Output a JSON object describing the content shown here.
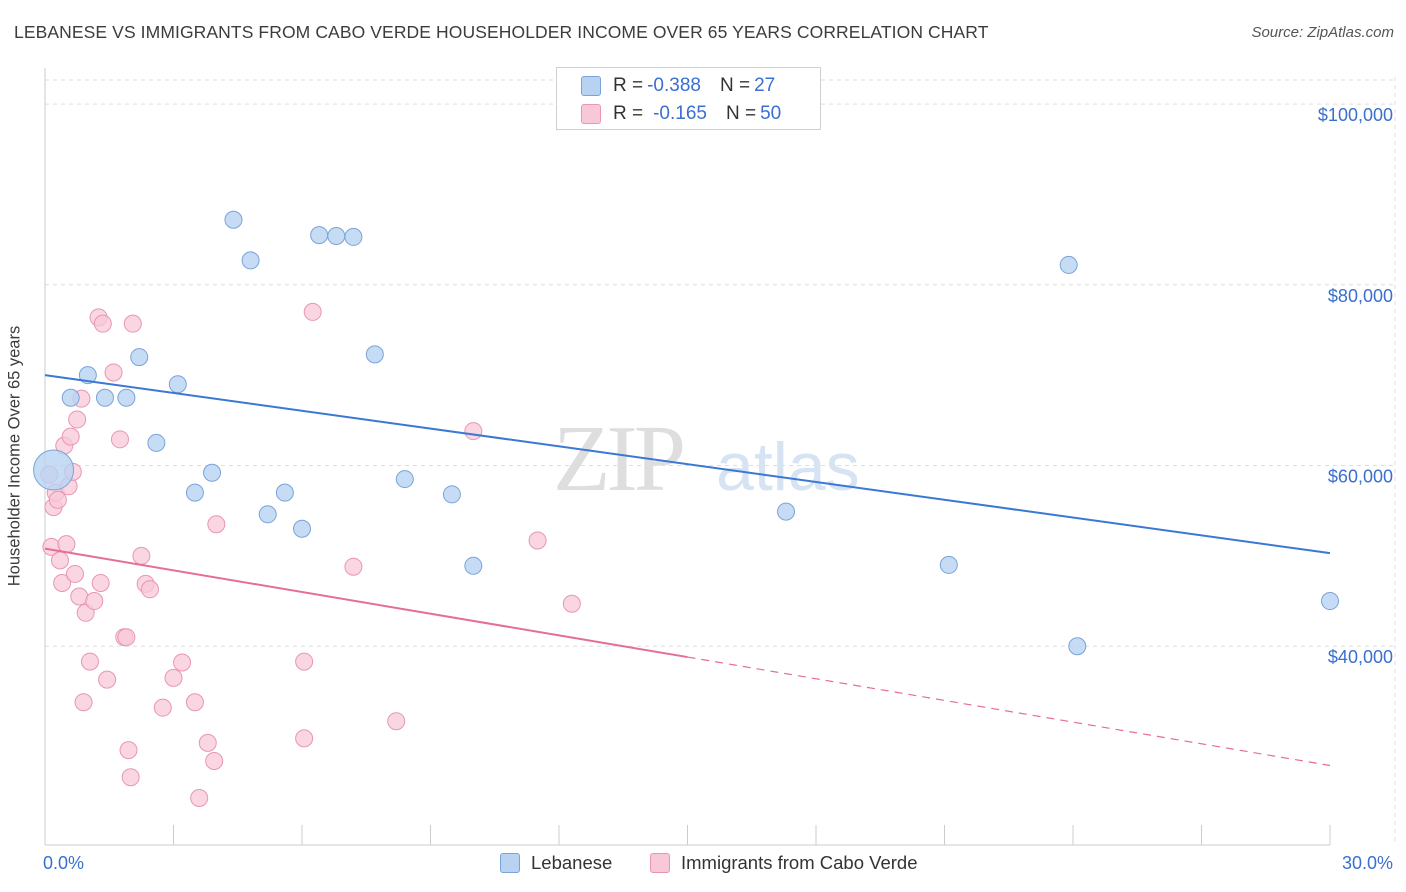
{
  "title": "LEBANESE VS IMMIGRANTS FROM CABO VERDE HOUSEHOLDER INCOME OVER 65 YEARS CORRELATION CHART",
  "source": "Source: ZipAtlas.com",
  "watermark": {
    "zip": "ZIP",
    "atlas": "atlas"
  },
  "legend": {
    "rows": [
      {
        "r_label": "R = ",
        "r_value": "-0.388",
        "n_label": "N = ",
        "n_value": "27"
      },
      {
        "r_label": "R = ",
        "r_value": "-0.165",
        "n_label": "N = ",
        "n_value": "50"
      }
    ]
  },
  "colors": {
    "blue_fill": "#b8d3f2",
    "blue_stroke": "#7aa3d8",
    "blue_line": "#3a78d4",
    "pink_fill": "#f8c8d8",
    "pink_stroke": "#e896b2",
    "pink_line": "#e56e96",
    "axis_label": "#3a6fd0",
    "grid": "#dddddd"
  },
  "chart_data": {
    "type": "scatter",
    "title": "LEBANESE VS IMMIGRANTS FROM CABO VERDE HOUSEHOLDER INCOME OVER 65 YEARS CORRELATION CHART",
    "xlabel": "",
    "ylabel": "Householder Income Over 65 years",
    "xlim": [
      0,
      30
    ],
    "ylim": [
      18000,
      103000
    ],
    "x_tick_labels": [
      "0.0%",
      "30.0%"
    ],
    "y_ticks": [
      40000,
      60000,
      80000,
      100000
    ],
    "y_tick_labels": [
      "$40,000",
      "$60,000",
      "$80,000",
      "$100,000"
    ],
    "grid": true,
    "legend_position": "bottom",
    "series": [
      {
        "name": "Lebanese",
        "color": "#7aa3d8",
        "points": [
          [
            0.2,
            59500
          ],
          [
            0.6,
            67500
          ],
          [
            1.0,
            70000
          ],
          [
            1.4,
            67500
          ],
          [
            1.9,
            67500
          ],
          [
            2.2,
            72000
          ],
          [
            2.6,
            62500
          ],
          [
            3.1,
            69000
          ],
          [
            3.5,
            57000
          ],
          [
            3.9,
            59200
          ],
          [
            4.4,
            87200
          ],
          [
            4.8,
            82700
          ],
          [
            5.2,
            54600
          ],
          [
            5.6,
            57000
          ],
          [
            6.0,
            53000
          ],
          [
            6.4,
            85500
          ],
          [
            6.8,
            85400
          ],
          [
            7.2,
            85300
          ],
          [
            7.7,
            72300
          ],
          [
            8.4,
            58500
          ],
          [
            9.5,
            56800
          ],
          [
            10.0,
            48900
          ],
          [
            17.3,
            54900
          ],
          [
            21.1,
            49000
          ],
          [
            23.9,
            82200
          ],
          [
            24.1,
            40000
          ],
          [
            30.0,
            45000
          ]
        ],
        "trend": {
          "x": [
            0,
            30
          ],
          "y": [
            70000,
            50300
          ]
        }
      },
      {
        "name": "Immigrants from Cabo Verde",
        "color": "#e896b2",
        "points": [
          [
            0.1,
            59000
          ],
          [
            0.15,
            51000
          ],
          [
            0.2,
            55400
          ],
          [
            0.25,
            57000
          ],
          [
            0.3,
            56200
          ],
          [
            0.35,
            49500
          ],
          [
            0.4,
            47000
          ],
          [
            0.45,
            62200
          ],
          [
            0.5,
            51300
          ],
          [
            0.55,
            57700
          ],
          [
            0.6,
            63200
          ],
          [
            0.65,
            59300
          ],
          [
            0.7,
            48000
          ],
          [
            0.75,
            65100
          ],
          [
            0.8,
            45500
          ],
          [
            0.85,
            67400
          ],
          [
            0.9,
            33800
          ],
          [
            0.95,
            43700
          ],
          [
            1.05,
            38300
          ],
          [
            1.15,
            45000
          ],
          [
            1.25,
            76400
          ],
          [
            1.3,
            47000
          ],
          [
            1.35,
            75700
          ],
          [
            1.45,
            36300
          ],
          [
            1.6,
            70300
          ],
          [
            1.75,
            62900
          ],
          [
            1.85,
            41000
          ],
          [
            1.95,
            28500
          ],
          [
            2.0,
            25500
          ],
          [
            2.05,
            75700
          ],
          [
            2.25,
            50000
          ],
          [
            2.35,
            46900
          ],
          [
            2.45,
            46300
          ],
          [
            2.75,
            33200
          ],
          [
            3.0,
            36500
          ],
          [
            3.2,
            38200
          ],
          [
            3.5,
            33800
          ],
          [
            3.6,
            23200
          ],
          [
            3.8,
            29300
          ],
          [
            3.95,
            27300
          ],
          [
            4.0,
            53500
          ],
          [
            6.05,
            38300
          ],
          [
            6.05,
            29800
          ],
          [
            6.25,
            77000
          ],
          [
            7.2,
            48800
          ],
          [
            8.2,
            31700
          ],
          [
            10.0,
            63800
          ],
          [
            11.5,
            51700
          ],
          [
            12.3,
            44700
          ],
          [
            1.9,
            41000
          ]
        ],
        "trend": {
          "x": [
            0,
            15
          ],
          "y": [
            50800,
            38800
          ]
        },
        "trend_extension": {
          "x": [
            15,
            30
          ],
          "y": [
            38800,
            26800
          ]
        }
      }
    ]
  }
}
